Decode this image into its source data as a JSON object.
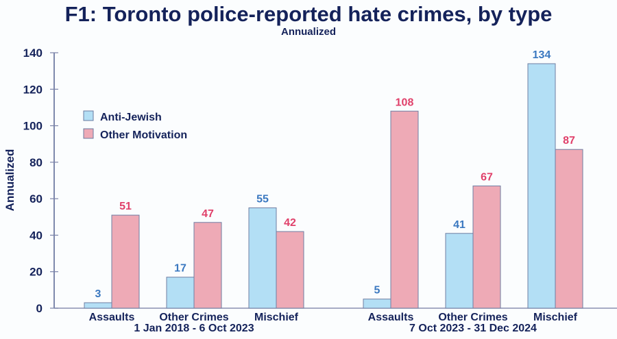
{
  "chart_data": {
    "type": "bar",
    "title": "F1: Toronto police-reported hate crimes, by type",
    "subtitle": "Annualized",
    "xlabel": "",
    "ylabel": "Annualized",
    "ylim": [
      0,
      140
    ],
    "yticks": [
      0,
      20,
      40,
      60,
      80,
      100,
      120,
      140
    ],
    "grid": false,
    "legend_position": "top-left",
    "groups": [
      {
        "period": "1 Jan 2018 - 6 Oct 2023",
        "categories": [
          "Assaults",
          "Other Crimes",
          "Mischief"
        ]
      },
      {
        "period": "7 Oct 2023 - 31 Dec 2024",
        "categories": [
          "Assaults",
          "Other Crimes",
          "Mischief"
        ]
      }
    ],
    "series": [
      {
        "name": "Anti-Jewish",
        "color": "#b3dff5",
        "label_color": "#3a78c0",
        "values": [
          [
            3,
            17,
            55
          ],
          [
            5,
            41,
            134
          ]
        ]
      },
      {
        "name": "Other Motivation",
        "color": "#eeaab6",
        "label_color": "#e0406a",
        "values": [
          [
            51,
            47,
            42
          ],
          [
            108,
            67,
            87
          ]
        ]
      }
    ]
  }
}
